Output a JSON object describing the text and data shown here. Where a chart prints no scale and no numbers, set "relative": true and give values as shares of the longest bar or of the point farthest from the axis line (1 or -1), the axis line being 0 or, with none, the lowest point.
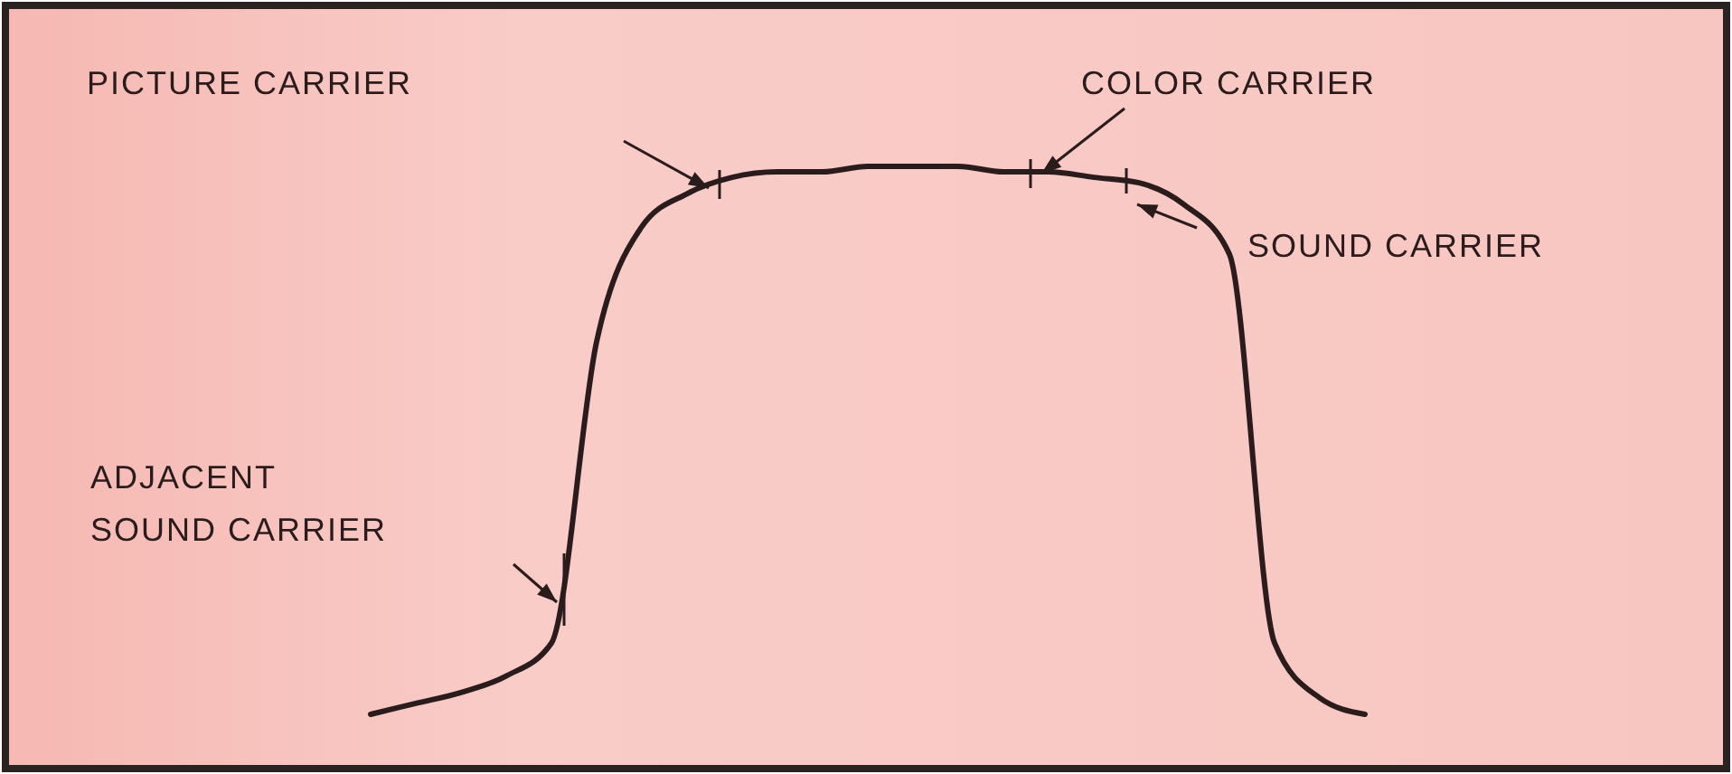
{
  "chart_data": {
    "type": "line",
    "relative": true,
    "categories": [
      null,
      null,
      null,
      null,
      null,
      null,
      null,
      null,
      null,
      null,
      null,
      null,
      null,
      null,
      null,
      null,
      null,
      null,
      null,
      null,
      null,
      null,
      null
    ],
    "series": [
      {
        "color": "#2a1c1c",
        "values": [
          0,
          0.02,
          0.04,
          0.07,
          0.13,
          0.68,
          0.89,
          0.95,
          0.98,
          0.99,
          0.99,
          1,
          1,
          1,
          0.99,
          0.99,
          0.98,
          0.97,
          0.93,
          0.84,
          0.13,
          0.03,
          0
        ]
      }
    ],
    "annotations": [
      "PICTURE CARRIER",
      "COLOR CARRIER",
      "SOUND CARRIER",
      "ADJACENT SOUND CARRIER"
    ],
    "marker": "none",
    "line_style": "solid",
    "grid": false
  }
}
